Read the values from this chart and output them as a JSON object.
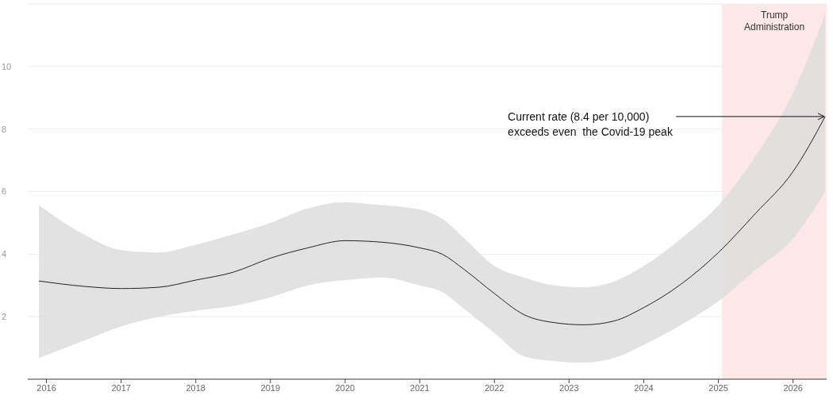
{
  "chart_data": {
    "type": "line",
    "x": [
      2015.9,
      2016.5,
      2017,
      2017.5,
      2018,
      2018.5,
      2019,
      2019.5,
      2020,
      2020.5,
      2021,
      2021.3,
      2021.6,
      2022,
      2022.4,
      2022.8,
      2023.2,
      2023.6,
      2024,
      2024.5,
      2025,
      2025.5,
      2026,
      2026.43
    ],
    "series": [
      {
        "color": "#222222",
        "values": [
          3.14,
          2.97,
          2.9,
          2.94,
          3.17,
          3.42,
          3.87,
          4.2,
          4.43,
          4.38,
          4.2,
          4.0,
          3.5,
          2.74,
          2.06,
          1.81,
          1.74,
          1.86,
          2.29,
          3.04,
          4.05,
          5.31,
          6.64,
          8.4
        ],
        "lower": [
          0.68,
          1.23,
          1.69,
          1.99,
          2.19,
          2.34,
          2.62,
          3.0,
          3.17,
          3.25,
          3.0,
          2.79,
          2.24,
          1.48,
          0.73,
          0.58,
          0.53,
          0.68,
          1.1,
          1.74,
          2.49,
          3.5,
          4.5,
          6.0
        ],
        "upper": [
          5.56,
          4.63,
          4.13,
          4.05,
          4.3,
          4.63,
          5.0,
          5.46,
          5.66,
          5.56,
          5.43,
          5.13,
          4.5,
          3.62,
          3.25,
          3.0,
          2.94,
          3.12,
          3.62,
          4.5,
          5.56,
          7.14,
          9.16,
          11.67
        ]
      }
    ],
    "xlim": [
      2015.75,
      2026.45
    ],
    "xticks": [
      2016,
      2017,
      2018,
      2019,
      2020,
      2021,
      2022,
      2023,
      2024,
      2025,
      2026
    ],
    "ylim": [
      0,
      12
    ],
    "yticks": [
      2,
      4,
      6,
      8,
      10
    ],
    "grid": "y",
    "bands": [
      {
        "axis": "x",
        "from": 2025.05,
        "to": 2026.45,
        "label": "Trump Administration",
        "color": "#fde8e8"
      }
    ],
    "annotations": [
      {
        "text": "Current rate (8.4 per 10,000) exceeds even  the Covid-19 peak",
        "x": 2026.43,
        "y": 8.4
      }
    ]
  }
}
